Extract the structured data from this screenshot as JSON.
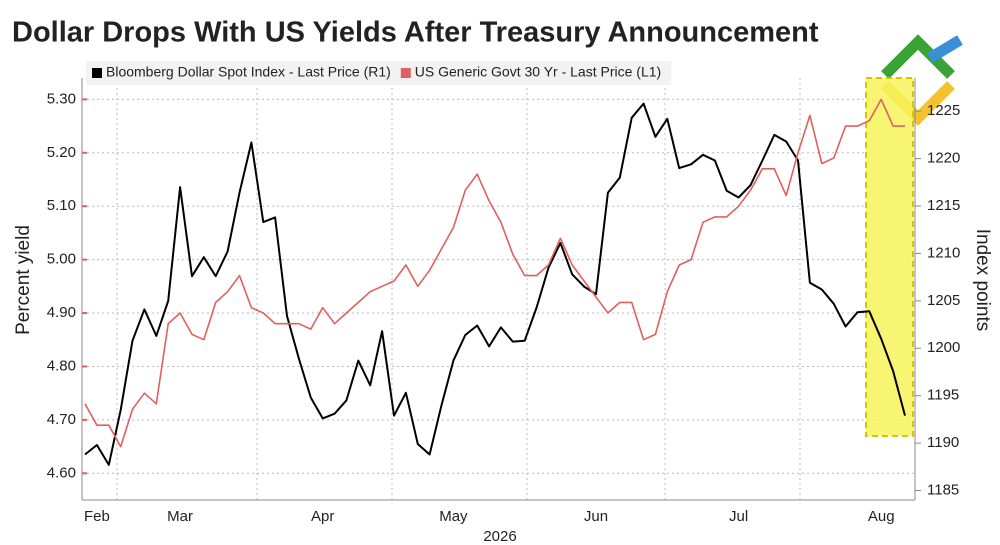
{
  "chart_data": {
    "type": "line",
    "title": "Dollar Drops With US Yields After Treasury Announcement",
    "xlabel": "2026",
    "ylabel": "Percent yield",
    "y2label": "Index points",
    "categories": [
      null,
      "Feb",
      null,
      null,
      null,
      null,
      null,
      null,
      "Mar",
      null,
      null,
      null,
      null,
      null,
      null,
      null,
      null,
      null,
      null,
      null,
      "Apr",
      null,
      null,
      null,
      null,
      null,
      null,
      null,
      null,
      null,
      null,
      "May",
      null,
      null,
      null,
      null,
      null,
      null,
      null,
      null,
      null,
      null,
      null,
      "Jun",
      null,
      null,
      null,
      null,
      null,
      null,
      null,
      null,
      null,
      null,
      null,
      "Jul",
      null,
      null,
      null,
      null,
      null,
      null,
      null,
      null,
      null,
      null,
      null,
      "Aug",
      null,
      null
    ],
    "series": [
      {
        "name": "Bloomberg Dollar Spot Index - Last Price (R1)",
        "color": "#000000",
        "axis": "y2",
        "values": [
          1188.8,
          1189.8,
          1187.7,
          1193.5,
          1200.8,
          1204.1,
          1201.3,
          1205.0,
          1217.0,
          1207.6,
          1209.6,
          1207.6,
          1210.2,
          1216.4,
          1221.7,
          1213.3,
          1213.8,
          1203.4,
          1198.9,
          1194.8,
          1192.6,
          1193.1,
          1194.5,
          1198.7,
          1196.1,
          1201.8,
          1192.9,
          1195.3,
          1189.9,
          1188.8,
          1194.0,
          1198.7,
          1201.4,
          1202.4,
          1200.2,
          1202.2,
          1200.7,
          1200.8,
          1204.3,
          1208.5,
          1211.1,
          1207.8,
          1206.5,
          1205.7,
          1216.4,
          1218.0,
          1224.3,
          1225.8,
          1222.3,
          1224.2,
          1219.0,
          1219.4,
          1220.4,
          1219.8,
          1216.6,
          1215.9,
          1217.2,
          1219.8,
          1222.5,
          1221.8,
          1219.8,
          1206.9,
          1206.2,
          1204.7,
          1202.3,
          1203.8,
          1203.9,
          1201.0,
          1197.6,
          1192.9
        ]
      },
      {
        "name": "US Generic Govt 30 Yr - Last Price (L1)",
        "color": "#e0605e",
        "axis": "y",
        "values": [
          4.73,
          4.69,
          4.69,
          4.65,
          4.72,
          4.75,
          4.73,
          4.88,
          4.9,
          4.86,
          4.85,
          4.92,
          4.94,
          4.97,
          4.91,
          4.9,
          4.88,
          4.88,
          4.88,
          4.87,
          4.91,
          4.88,
          4.9,
          4.92,
          4.94,
          4.95,
          4.96,
          4.99,
          4.95,
          4.98,
          5.02,
          5.06,
          5.13,
          5.16,
          5.11,
          5.07,
          5.01,
          4.97,
          4.97,
          4.99,
          5.04,
          4.99,
          4.96,
          4.93,
          4.9,
          4.92,
          4.92,
          4.85,
          4.86,
          4.94,
          4.99,
          5.0,
          5.07,
          5.08,
          5.08,
          5.1,
          5.13,
          5.17,
          5.17,
          5.12,
          5.2,
          5.27,
          5.18,
          5.19,
          5.25,
          5.25,
          5.26,
          5.3,
          5.25,
          5.25
        ]
      }
    ],
    "ylim": [
      4.55,
      5.34
    ],
    "yticks": [
      {
        "value": 4.6,
        "label": "4.60"
      },
      {
        "value": 4.7,
        "label": "4.70"
      },
      {
        "value": 4.8,
        "label": "4.80"
      },
      {
        "value": 4.9,
        "label": "4.90"
      },
      {
        "value": 5.0,
        "label": "5.00"
      },
      {
        "value": 5.1,
        "label": "5.10"
      },
      {
        "value": 5.2,
        "label": "5.20"
      },
      {
        "value": 5.3,
        "label": "5.30"
      }
    ],
    "y2lim": [
      1184,
      1228.5
    ],
    "y2ticks": [
      1185,
      1190,
      1195,
      1200,
      1205,
      1210,
      1215,
      1220,
      1225
    ],
    "grid": true,
    "legend": "top-left"
  }
}
